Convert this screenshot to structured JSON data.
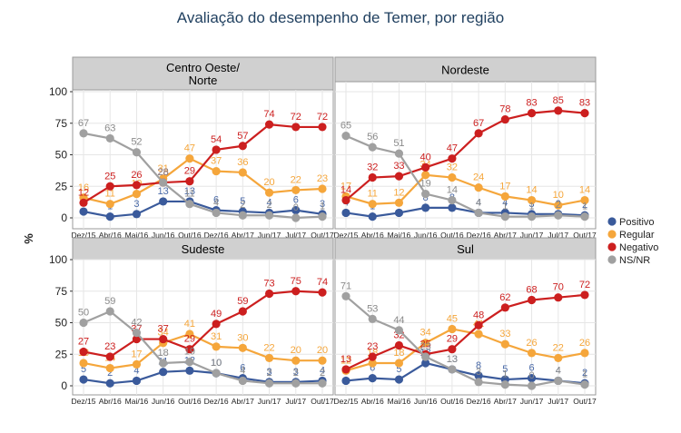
{
  "title": "Avaliação do desempenho de Temer, por região",
  "chart_data": {
    "type": "line",
    "title": "Avaliação do desempenho de Temer, por região",
    "ylabel": "%",
    "ylim": [
      0,
      100
    ],
    "yticks": [
      0,
      25,
      50,
      75,
      100
    ],
    "x": [
      "Dez/15",
      "Abr/16",
      "Mai/16",
      "Jun/16",
      "Out/16",
      "Dez/16",
      "Abr/17",
      "Jun/17",
      "Jul/17",
      "Out/17"
    ],
    "legend": {
      "position": "right",
      "entries": [
        {
          "name": "Positivo",
          "color": "#3a5a9b"
        },
        {
          "name": "Regular",
          "color": "#f5a63b"
        },
        {
          "name": "Negativo",
          "color": "#cc1f1f"
        },
        {
          "name": "NS/NR",
          "color": "#a0a0a0"
        }
      ]
    },
    "panels": [
      {
        "title_lines": [
          "Centro Oeste/",
          "Norte"
        ],
        "series": [
          {
            "name": "Positivo",
            "values": [
              5,
              1,
              3,
              13,
              13,
              6,
              5,
              4,
              6,
              3
            ]
          },
          {
            "name": "Regular",
            "values": [
              16,
              11,
              19,
              31,
              47,
              37,
              36,
              20,
              22,
              23
            ]
          },
          {
            "name": "Negativo",
            "values": [
              12,
              25,
              26,
              28,
              29,
              54,
              57,
              74,
              72,
              72
            ]
          },
          {
            "name": "NS/NR",
            "values": [
              67,
              63,
              52,
              28,
              11,
              4,
              2,
              2,
              0,
              1
            ]
          }
        ]
      },
      {
        "title_lines": [
          "Nordeste"
        ],
        "series": [
          {
            "name": "Positivo",
            "values": [
              4,
              1,
              4,
              8,
              8,
              4,
              4,
              3,
              3,
              2
            ]
          },
          {
            "name": "Regular",
            "values": [
              17,
              11,
              12,
              34,
              32,
              24,
              17,
              14,
              10,
              14
            ]
          },
          {
            "name": "Negativo",
            "values": [
              14,
              32,
              33,
              40,
              47,
              67,
              78,
              83,
              85,
              83
            ]
          },
          {
            "name": "NS/NR",
            "values": [
              65,
              56,
              51,
              19,
              14,
              4,
              1,
              1,
              2,
              1
            ]
          }
        ]
      },
      {
        "title_lines": [
          "Sudeste"
        ],
        "series": [
          {
            "name": "Positivo",
            "values": [
              5,
              2,
              4,
              11,
              12,
              10,
              6,
              3,
              3,
              4
            ]
          },
          {
            "name": "Regular",
            "values": [
              18,
              14,
              17,
              34,
              41,
              31,
              30,
              22,
              20,
              20
            ]
          },
          {
            "name": "Negativo",
            "values": [
              27,
              23,
              37,
              37,
              29,
              49,
              59,
              73,
              75,
              74
            ]
          },
          {
            "name": "NS/NR",
            "values": [
              50,
              59,
              42,
              18,
              19,
              10,
              4,
              2,
              2,
              2
            ]
          }
        ]
      },
      {
        "title_lines": [
          "Sul"
        ],
        "series": [
          {
            "name": "Positivo",
            "values": [
              4,
              6,
              5,
              18,
              13,
              8,
              5,
              6,
              4,
              2
            ]
          },
          {
            "name": "Regular",
            "values": [
              12,
              18,
              18,
              34,
              45,
              41,
              33,
              26,
              22,
              26
            ]
          },
          {
            "name": "Negativo",
            "values": [
              13,
              23,
              32,
              25,
              29,
              48,
              62,
              68,
              70,
              72
            ]
          },
          {
            "name": "NS/NR",
            "values": [
              71,
              53,
              44,
              23,
              13,
              3,
              1,
              0,
              4,
              1
            ]
          }
        ]
      }
    ]
  }
}
